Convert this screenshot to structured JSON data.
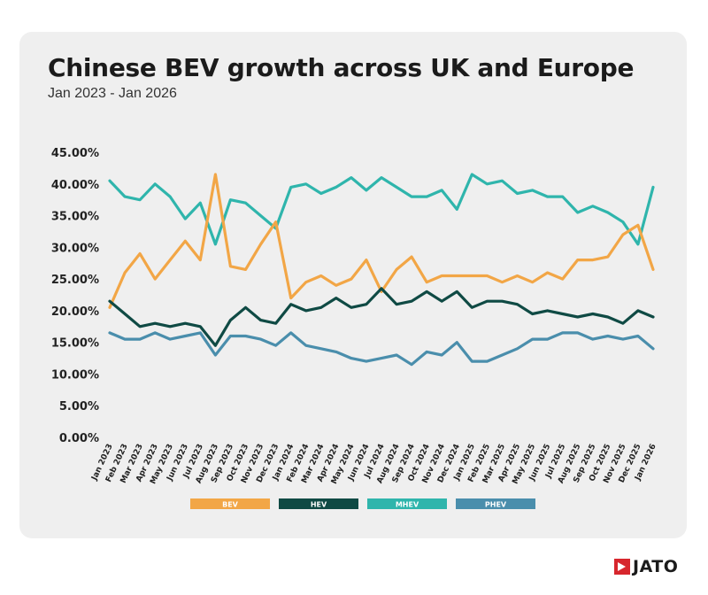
{
  "header": {
    "title": "Chinese BEV growth across UK and Europe",
    "subtitle": "Jan 2023 - Jan 2026"
  },
  "brand": {
    "logo_text": "JATO"
  },
  "chart_data": {
    "type": "line",
    "title": "Chinese BEV growth across UK and Europe",
    "subtitle": "Jan 2023 - Jan 2026",
    "xlabel": "",
    "ylabel": "",
    "ylim": [
      0,
      0.45
    ],
    "yticks": [
      "0.00%",
      "5.00%",
      "10.00%",
      "15.00%",
      "20.00%",
      "25.00%",
      "30.00%",
      "35.00%",
      "40.00%",
      "45.00%"
    ],
    "grid": false,
    "legend": "bottom",
    "x": [
      "Jan 2023",
      "Feb 2023",
      "Mar 2023",
      "Apr 2023",
      "May 2023",
      "Jun 2023",
      "Jul 2023",
      "Aug 2023",
      "Sep 2023",
      "Oct 2023",
      "Nov 2023",
      "Dec 2023",
      "Jan 2024",
      "Feb 2024",
      "Mar 2024",
      "Apr 2024",
      "May 2024",
      "Jun 2024",
      "Jul 2024",
      "Aug 2024",
      "Sep 2024",
      "Oct 2024",
      "Nov 2024",
      "Dec 2024",
      "Jan 2025",
      "Feb 2025",
      "Mar 2025",
      "Apr 2025",
      "May 2025",
      "Jun 2025",
      "Jul 2025",
      "Aug 2025",
      "Sep 2025",
      "Oct 2025",
      "Nov 2025",
      "Dec 2025",
      "Jan 2026"
    ],
    "series": [
      {
        "name": "BEV",
        "color": "#f2a646",
        "values": [
          0.205,
          0.26,
          0.29,
          0.25,
          0.28,
          0.31,
          0.28,
          0.415,
          0.27,
          0.265,
          0.305,
          0.34,
          0.22,
          0.245,
          0.255,
          0.24,
          0.25,
          0.28,
          0.23,
          0.265,
          0.285,
          0.245,
          0.255,
          0.255,
          0.255,
          0.255,
          0.245,
          0.255,
          0.245,
          0.26,
          0.25,
          0.28,
          0.28,
          0.285,
          0.32,
          0.335,
          0.265
        ]
      },
      {
        "name": "HEV",
        "color": "#0f4a44",
        "values": [
          0.215,
          0.195,
          0.175,
          0.18,
          0.175,
          0.18,
          0.175,
          0.145,
          0.185,
          0.205,
          0.185,
          0.18,
          0.21,
          0.2,
          0.205,
          0.22,
          0.205,
          0.21,
          0.235,
          0.21,
          0.215,
          0.23,
          0.215,
          0.23,
          0.205,
          0.215,
          0.215,
          0.21,
          0.195,
          0.2,
          0.195,
          0.19,
          0.195,
          0.19,
          0.18,
          0.2,
          0.19
        ]
      },
      {
        "name": "MHEV",
        "color": "#2fb5ac",
        "values": [
          0.405,
          0.38,
          0.375,
          0.4,
          0.38,
          0.345,
          0.37,
          0.305,
          0.375,
          0.37,
          0.35,
          0.33,
          0.395,
          0.4,
          0.385,
          0.395,
          0.41,
          0.39,
          0.41,
          0.395,
          0.38,
          0.38,
          0.39,
          0.36,
          0.415,
          0.4,
          0.405,
          0.385,
          0.39,
          0.38,
          0.38,
          0.355,
          0.365,
          0.355,
          0.34,
          0.305,
          0.395
        ]
      },
      {
        "name": "PHEV",
        "color": "#4a8eac",
        "values": [
          0.165,
          0.155,
          0.155,
          0.165,
          0.155,
          0.16,
          0.165,
          0.13,
          0.16,
          0.16,
          0.155,
          0.145,
          0.165,
          0.145,
          0.14,
          0.135,
          0.125,
          0.12,
          0.125,
          0.13,
          0.115,
          0.135,
          0.13,
          0.15,
          0.12,
          0.12,
          0.13,
          0.14,
          0.155,
          0.155,
          0.165,
          0.165,
          0.155,
          0.16,
          0.155,
          0.16,
          0.14
        ]
      }
    ]
  }
}
